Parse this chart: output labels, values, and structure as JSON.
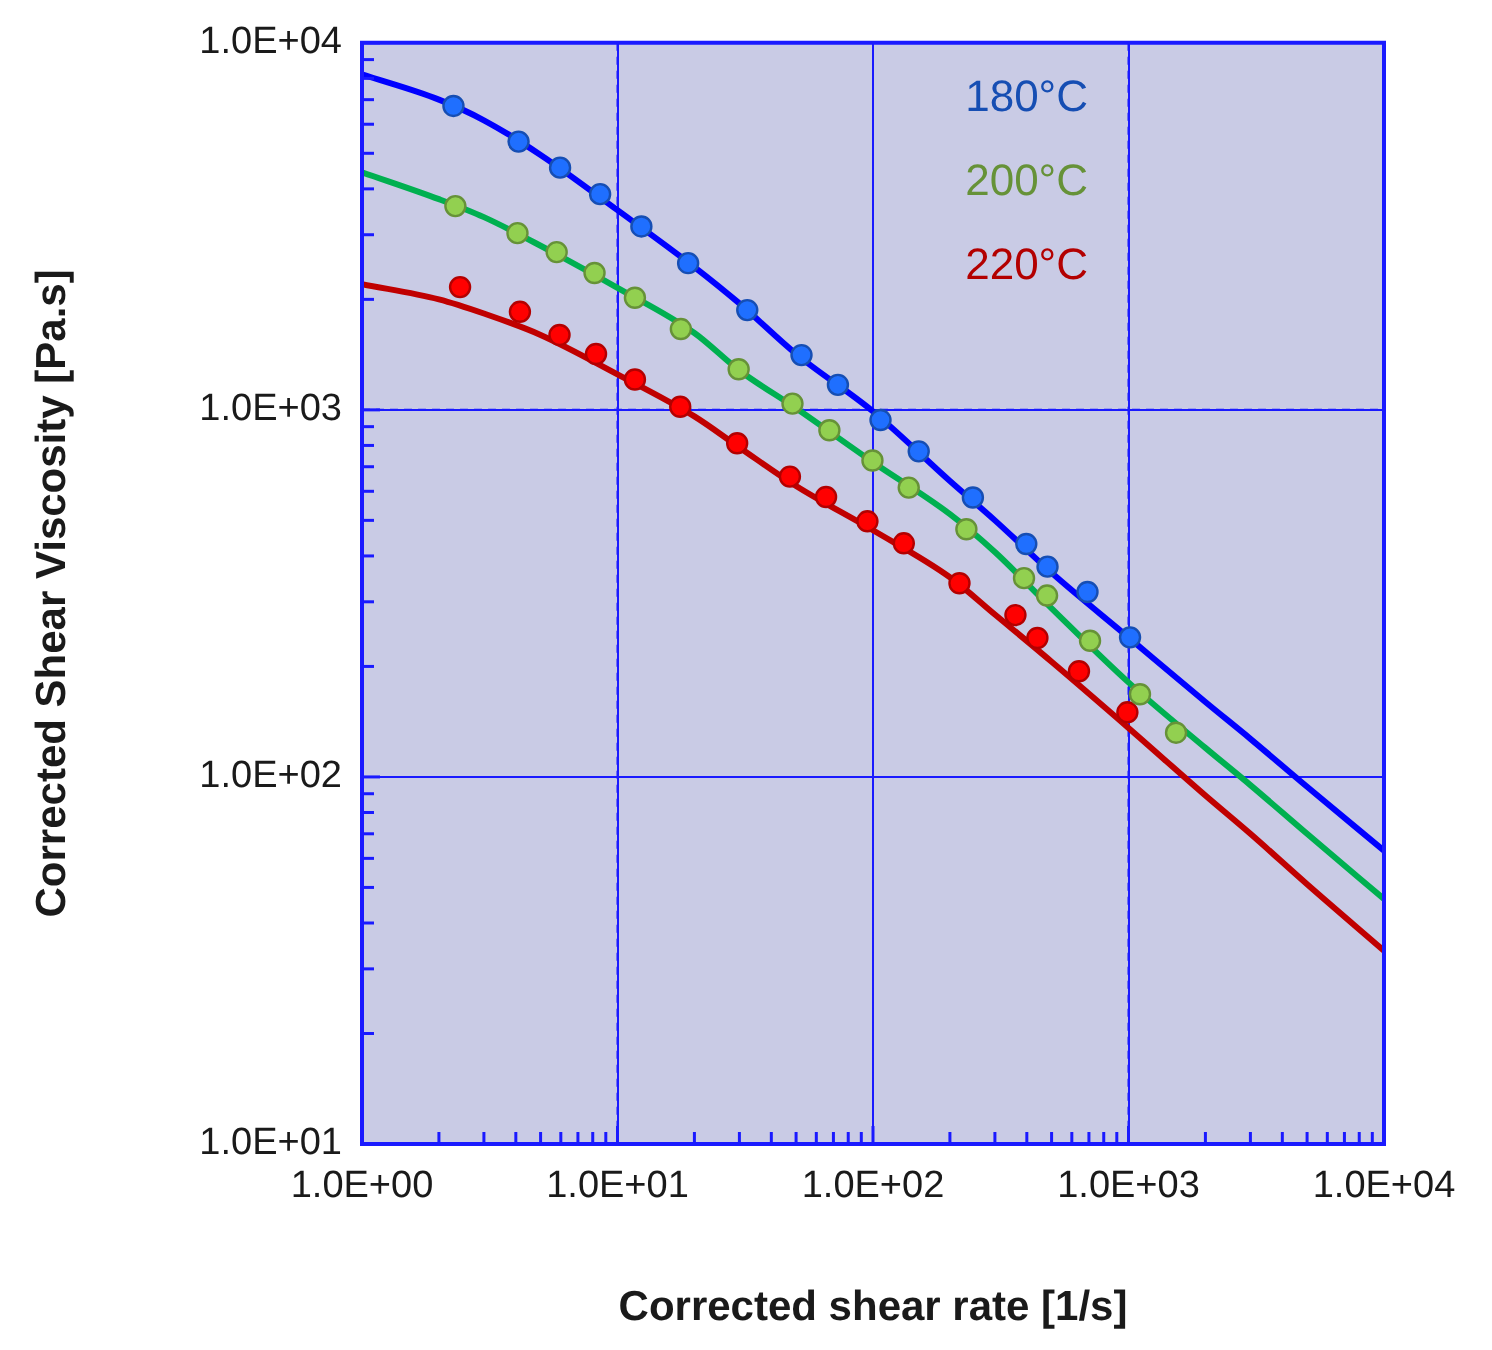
{
  "chart_data": {
    "type": "scatter",
    "xlabel": "Corrected shear rate [1/s]",
    "ylabel": "Corrected Shear Viscosity [Pa.s]",
    "log": "xy",
    "grid": true,
    "legend": "top right",
    "marker": "circle",
    "line_style": "solid",
    "xlim": [
      1,
      10000
    ],
    "ylim": [
      10,
      10000
    ],
    "xticks": [
      {
        "value": 1,
        "label": "1.0E+00"
      },
      {
        "value": 2,
        "label": null
      },
      {
        "value": 3,
        "label": null
      },
      {
        "value": 4,
        "label": null
      },
      {
        "value": 5,
        "label": null
      },
      {
        "value": 6,
        "label": null
      },
      {
        "value": 7,
        "label": null
      },
      {
        "value": 8,
        "label": null
      },
      {
        "value": 9,
        "label": null
      },
      {
        "value": 10,
        "label": "1.0E+01"
      },
      {
        "value": 20,
        "label": null
      },
      {
        "value": 30,
        "label": null
      },
      {
        "value": 40,
        "label": null
      },
      {
        "value": 50,
        "label": null
      },
      {
        "value": 60,
        "label": null
      },
      {
        "value": 70,
        "label": null
      },
      {
        "value": 80,
        "label": null
      },
      {
        "value": 90,
        "label": null
      },
      {
        "value": 100,
        "label": "1.0E+02"
      },
      {
        "value": 200,
        "label": null
      },
      {
        "value": 300,
        "label": null
      },
      {
        "value": 400,
        "label": null
      },
      {
        "value": 500,
        "label": null
      },
      {
        "value": 600,
        "label": null
      },
      {
        "value": 700,
        "label": null
      },
      {
        "value": 800,
        "label": null
      },
      {
        "value": 900,
        "label": null
      },
      {
        "value": 1000,
        "label": "1.0E+03"
      },
      {
        "value": 2000,
        "label": null
      },
      {
        "value": 3000,
        "label": null
      },
      {
        "value": 4000,
        "label": null
      },
      {
        "value": 5000,
        "label": null
      },
      {
        "value": 6000,
        "label": null
      },
      {
        "value": 7000,
        "label": null
      },
      {
        "value": 8000,
        "label": null
      },
      {
        "value": 9000,
        "label": null
      },
      {
        "value": 10000,
        "label": "1.0E+04"
      }
    ],
    "yticks": [
      {
        "value": 10,
        "label": "1.0E+01"
      },
      {
        "value": 20,
        "label": null
      },
      {
        "value": 30,
        "label": null
      },
      {
        "value": 40,
        "label": null
      },
      {
        "value": 50,
        "label": null
      },
      {
        "value": 60,
        "label": null
      },
      {
        "value": 70,
        "label": null
      },
      {
        "value": 80,
        "label": null
      },
      {
        "value": 90,
        "label": null
      },
      {
        "value": 100,
        "label": "1.0E+02"
      },
      {
        "value": 200,
        "label": null
      },
      {
        "value": 300,
        "label": null
      },
      {
        "value": 400,
        "label": null
      },
      {
        "value": 500,
        "label": null
      },
      {
        "value": 600,
        "label": null
      },
      {
        "value": 700,
        "label": null
      },
      {
        "value": 800,
        "label": null
      },
      {
        "value": 900,
        "label": null
      },
      {
        "value": 1000,
        "label": "1.0E+03"
      },
      {
        "value": 2000,
        "label": null
      },
      {
        "value": 3000,
        "label": null
      },
      {
        "value": 4000,
        "label": null
      },
      {
        "value": 5000,
        "label": null
      },
      {
        "value": 6000,
        "label": null
      },
      {
        "value": 7000,
        "label": null
      },
      {
        "value": 8000,
        "label": null
      },
      {
        "value": 9000,
        "label": null
      },
      {
        "value": 10000,
        "label": "1.0E+04"
      }
    ],
    "series": [
      {
        "type": "line",
        "marker": "none",
        "color": "#0000ff",
        "x": [
          1,
          2,
          3,
          5,
          10,
          20,
          30,
          50,
          100,
          200,
          300,
          500,
          1000,
          2000,
          3000,
          5000,
          10000
        ],
        "values": [
          8200,
          7000,
          6150,
          4950,
          3500,
          2450,
          1950,
          1420,
          990,
          640,
          500,
          360,
          240,
          160,
          127,
          94,
          63
        ]
      },
      {
        "type": "line",
        "marker": "none",
        "color": "#00b050",
        "x": [
          1,
          2,
          3,
          5,
          10,
          20,
          30,
          50,
          100,
          200,
          300,
          500,
          1000,
          2000,
          3000,
          5000,
          10000
        ],
        "values": [
          4440,
          3750,
          3350,
          2800,
          2150,
          1620,
          1280,
          1010,
          720,
          520,
          410,
          288,
          181,
          120,
          95,
          70,
          46.5
        ]
      },
      {
        "type": "line",
        "marker": "none",
        "color": "#c00000",
        "x": [
          1,
          2,
          3,
          5,
          10,
          20,
          30,
          50,
          100,
          200,
          300,
          500,
          1000,
          2000,
          3000,
          5000,
          10000
        ],
        "values": [
          2200,
          2000,
          1830,
          1600,
          1250,
          960,
          790,
          620,
          470,
          350,
          277,
          206,
          136,
          89,
          70,
          51,
          33.6
        ]
      },
      {
        "name": "180°C",
        "color": "#1f6fff",
        "x": [
          2.28,
          4.1,
          5.96,
          8.55,
          12.4,
          18.9,
          32.2,
          52.5,
          72.9,
          107,
          151,
          246,
          398,
          482,
          691,
          1014
        ],
        "values": [
          6730,
          5380,
          4570,
          3870,
          3160,
          2510,
          1870,
          1410,
          1170,
          938,
          771,
          577,
          431,
          374,
          319,
          240
        ]
      },
      {
        "name": "200°C",
        "color": "#92d050",
        "x": [
          2.32,
          4.06,
          5.78,
          8.13,
          11.7,
          17.7,
          29.8,
          48.4,
          67.5,
          99.5,
          138,
          232,
          390,
          480,
          707,
          1109,
          1535
        ],
        "values": [
          3590,
          3030,
          2690,
          2360,
          2020,
          1660,
          1290,
          1040,
          880,
          728,
          614,
          473,
          348,
          312,
          235,
          168,
          132
        ]
      },
      {
        "name": "220°C",
        "color": "#ff0000",
        "x": [
          2.42,
          4.15,
          5.93,
          8.24,
          11.7,
          17.6,
          29.4,
          47.3,
          65.5,
          95.1,
          132,
          218,
          361,
          440,
          640,
          990
        ],
        "values": [
          2160,
          1850,
          1600,
          1420,
          1210,
          1020,
          811,
          658,
          579,
          497,
          433,
          337,
          276,
          239,
          194,
          150
        ]
      }
    ]
  }
}
